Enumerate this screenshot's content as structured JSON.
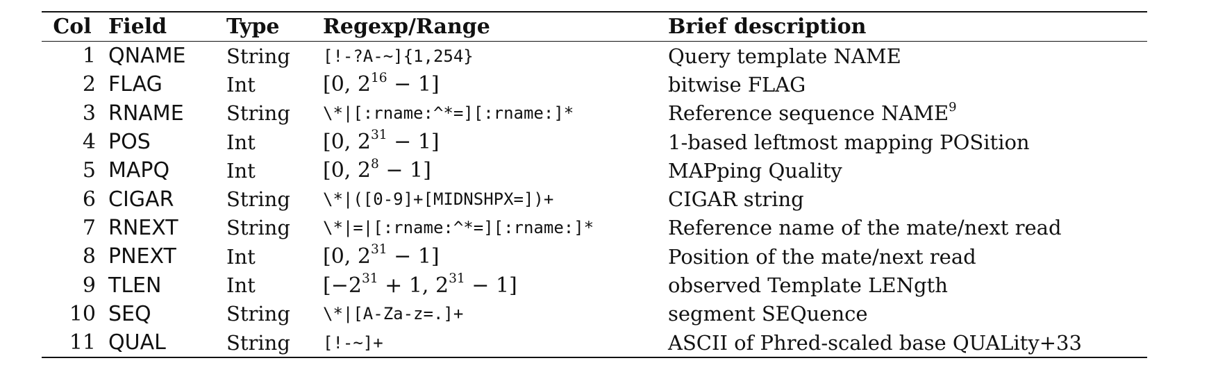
{
  "table": {
    "headers": {
      "col": "Col",
      "field": "Field",
      "type": "Type",
      "regexp": "Regexp/Range",
      "description": "Brief description"
    },
    "rows": [
      {
        "col": "1",
        "field": "QNAME",
        "type": "String",
        "regexp": "[!-?A-~]{1,254}",
        "description": "Query template NAME"
      },
      {
        "col": "2",
        "field": "FLAG",
        "type": "Int",
        "regexp": "[0, 2^16 − 1]",
        "description": "bitwise FLAG"
      },
      {
        "col": "3",
        "field": "RNAME",
        "type": "String",
        "regexp": "\\*|[:rname:^*=][:rname:]*",
        "description": "Reference sequence NAME^9"
      },
      {
        "col": "4",
        "field": "POS",
        "type": "Int",
        "regexp": "[0, 2^31 − 1]",
        "description": "1-based leftmost mapping POSition"
      },
      {
        "col": "5",
        "field": "MAPQ",
        "type": "Int",
        "regexp": "[0, 2^8 − 1]",
        "description": "MAPping Quality"
      },
      {
        "col": "6",
        "field": "CIGAR",
        "type": "String",
        "regexp": "\\*|([0-9]+[MIDNSHPX=])+",
        "description": "CIGAR string"
      },
      {
        "col": "7",
        "field": "RNEXT",
        "type": "String",
        "regexp": "\\*|=|[:rname:^*=][:rname:]*",
        "description": "Reference name of the mate/next read"
      },
      {
        "col": "8",
        "field": "PNEXT",
        "type": "Int",
        "regexp": "[0, 2^31 − 1]",
        "description": "Position of the mate/next read"
      },
      {
        "col": "9",
        "field": "TLEN",
        "type": "Int",
        "regexp": "[−2^31 + 1, 2^31 − 1]",
        "description": "observed Template LENgth"
      },
      {
        "col": "10",
        "field": "SEQ",
        "type": "String",
        "regexp": "\\*|[A-Za-z=.]+",
        "description": "segment SEQuence"
      },
      {
        "col": "11",
        "field": "QUAL",
        "type": "String",
        "regexp": "[!-~]+",
        "description": "ASCII of Phred-scaled base QUALity+33"
      }
    ]
  }
}
